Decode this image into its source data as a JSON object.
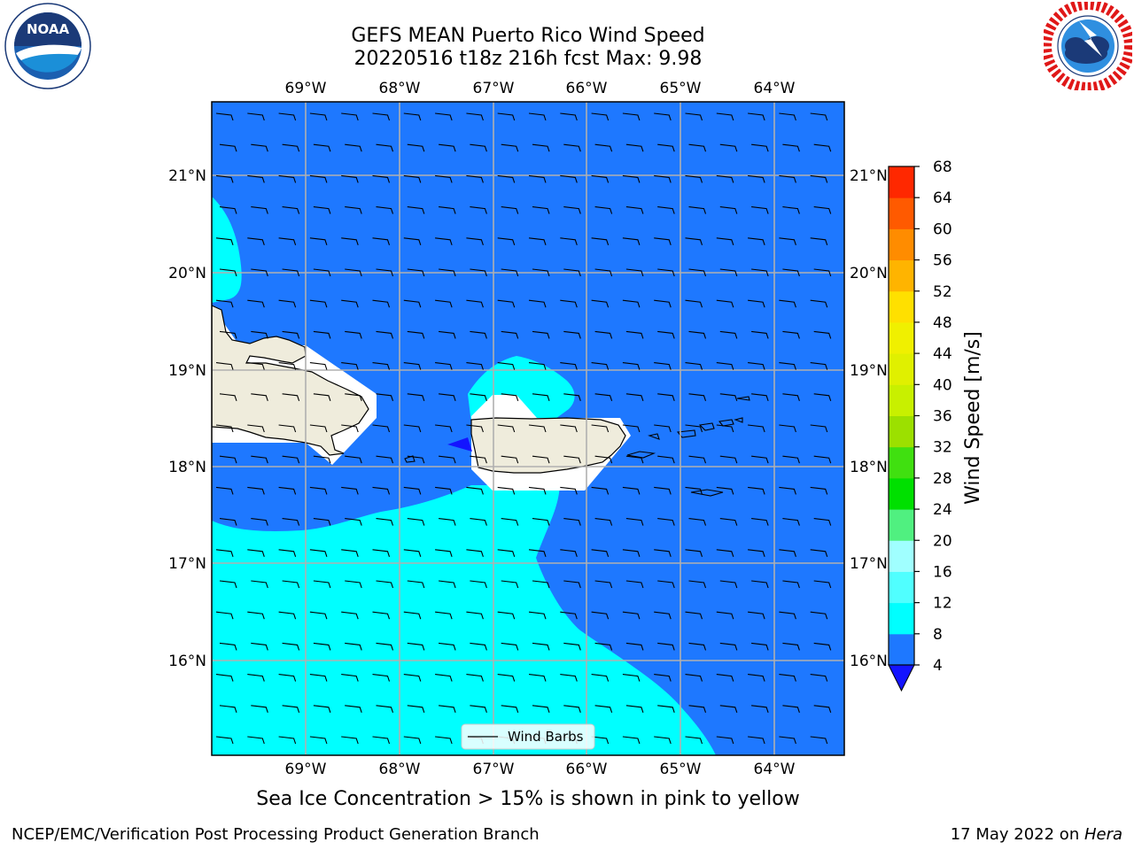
{
  "header": {
    "title_line1": "GEFS MEAN Puerto Rico Wind Speed",
    "title_line2": "20220516 t18z 216h fcst   Max: 9.98"
  },
  "logos": {
    "left": {
      "name": "noaa-logo",
      "text": "NOAA",
      "ring_text": "NATIONAL OCEANIC AND ATMOSPHERIC ADMINISTRATION · U.S. DEPARTMENT OF COMMERCE"
    },
    "right": {
      "name": "nws-logo",
      "ring_text": "NATIONAL WEATHER SERVICE"
    }
  },
  "map": {
    "lon_ticks": [
      "69°W",
      "68°W",
      "67°W",
      "66°W",
      "65°W",
      "64°W"
    ],
    "lat_ticks": [
      "21°N",
      "20°N",
      "19°N",
      "18°N",
      "17°N",
      "16°N"
    ],
    "legend_label": "Wind Barbs",
    "colors": {
      "ocean_4_8": "#1e78ff",
      "cyan_8_12": "#00ffff",
      "land": "#efecdc",
      "grid": "#b0b0b0"
    }
  },
  "colorbar": {
    "label": "Wind Speed [m/s]",
    "ticks": [
      "4",
      "8",
      "12",
      "16",
      "20",
      "24",
      "28",
      "32",
      "36",
      "40",
      "44",
      "48",
      "52",
      "56",
      "60",
      "64",
      "68"
    ],
    "colors": [
      "#1e78ff",
      "#00ffff",
      "#50ffff",
      "#a0ffff",
      "#50f080",
      "#00e000",
      "#40e010",
      "#9ce000",
      "#c8f000",
      "#e0f000",
      "#f0f000",
      "#ffe000",
      "#ffb400",
      "#ff8c00",
      "#ff5a00",
      "#ff2800"
    ],
    "under_color": "#1414ff"
  },
  "caption": "Sea Ice Concentration > 15% is shown in pink to yellow",
  "footer": {
    "left": "NCEP/EMC/Verification Post Processing Product Generation Branch",
    "date": "17 May 2022 on ",
    "machine": "Hera"
  }
}
